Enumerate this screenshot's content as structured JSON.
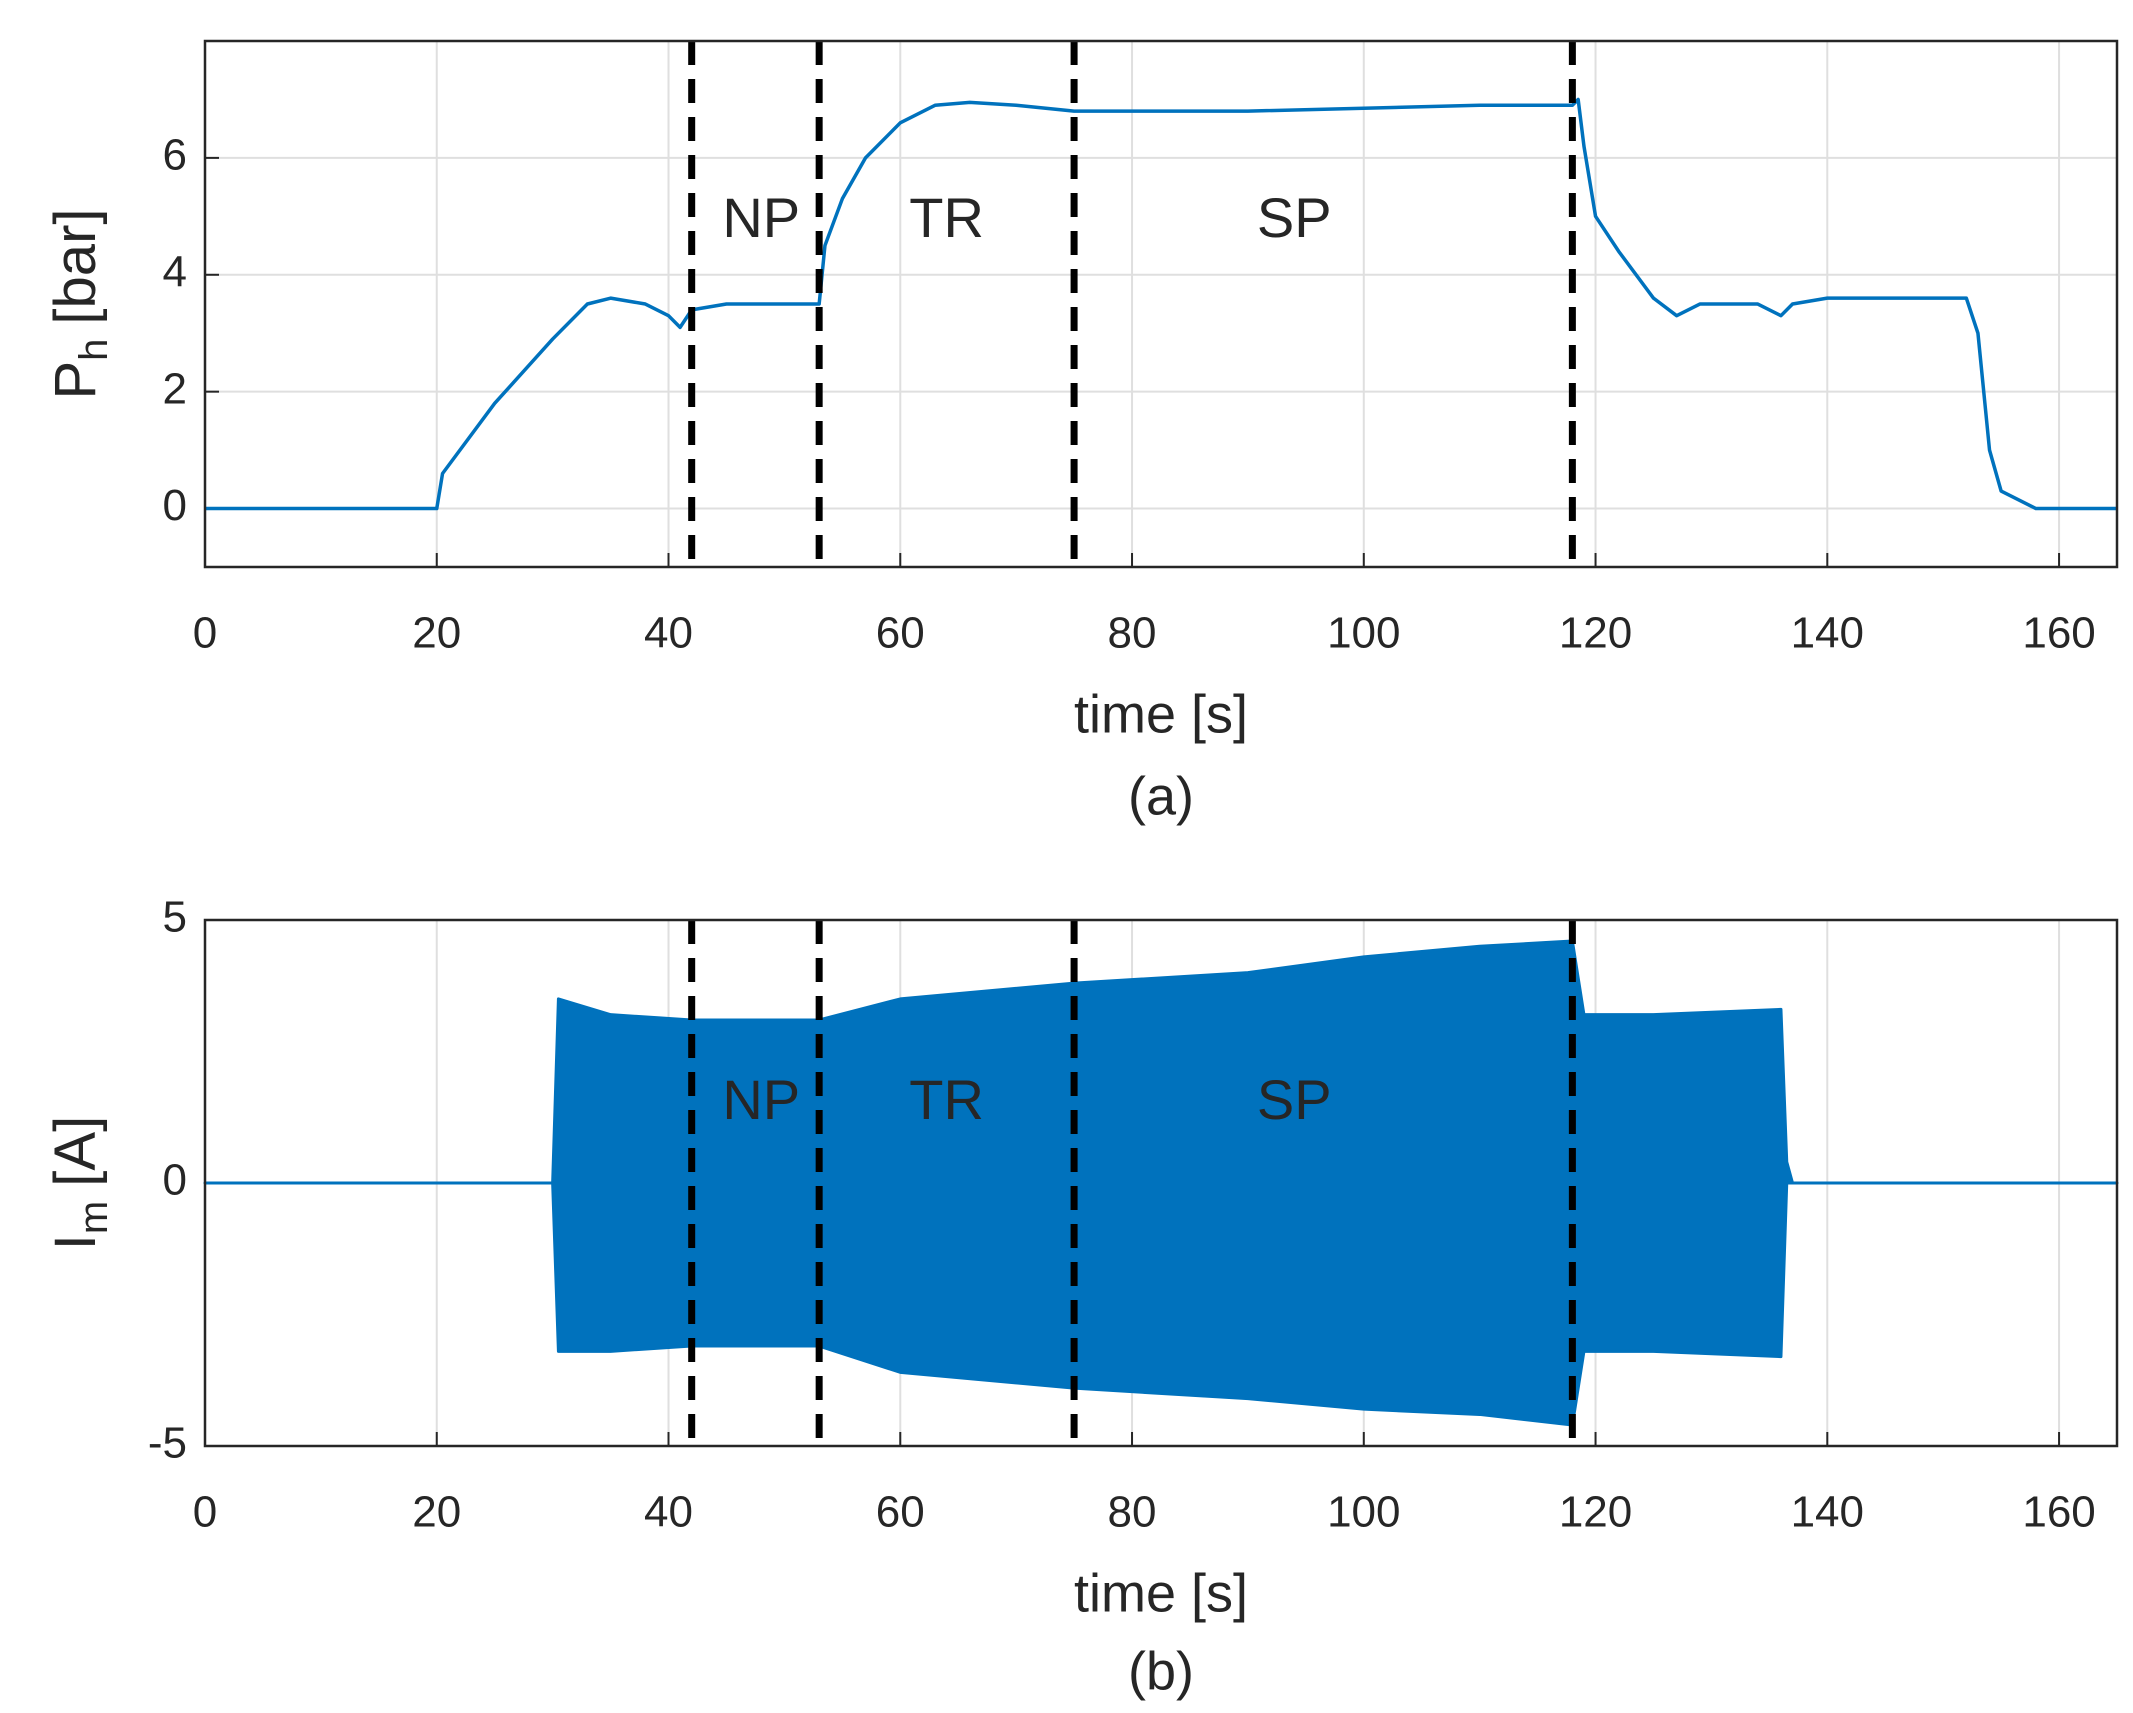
{
  "chart_data": [
    {
      "type": "line",
      "x": [
        0,
        20,
        20.5,
        25,
        30,
        33,
        35,
        38,
        40,
        41,
        42,
        45,
        53,
        53.5,
        55,
        57,
        60,
        63,
        66,
        70,
        75,
        90,
        110,
        118,
        118.5,
        119,
        120,
        122,
        125,
        127,
        129,
        134,
        136,
        137,
        140,
        152,
        153,
        154,
        155,
        158,
        165
      ],
      "series": [
        {
          "color": "#0072bd",
          "values": [
            0,
            0,
            0.6,
            1.8,
            2.9,
            3.5,
            3.6,
            3.5,
            3.3,
            3.1,
            3.4,
            3.5,
            3.5,
            4.5,
            5.3,
            6.0,
            6.6,
            6.9,
            6.95,
            6.9,
            6.8,
            6.8,
            6.9,
            6.9,
            7.0,
            6.2,
            5.0,
            4.4,
            3.6,
            3.3,
            3.5,
            3.5,
            3.3,
            3.5,
            3.6,
            3.6,
            3.0,
            1.0,
            0.3,
            0,
            0
          ]
        }
      ],
      "xlim": [
        0,
        165
      ],
      "xticks": [
        0,
        20,
        40,
        60,
        80,
        100,
        120,
        140,
        160
      ],
      "ylim": [
        -1,
        8
      ],
      "yticks": [
        0,
        2,
        4,
        6
      ],
      "grid": true,
      "xlabel": "time [s]",
      "ylabel": [
        "P",
        "h",
        "[bar]"
      ],
      "caption": "(a)",
      "vlines": [
        42,
        53,
        75,
        118
      ],
      "annotations": [
        {
          "text": "NP",
          "x": 48,
          "y": 4.9
        },
        {
          "text": "TR",
          "x": 64,
          "y": 4.9
        },
        {
          "text": "SP",
          "x": 94,
          "y": 4.9
        }
      ]
    },
    {
      "type": "area",
      "x": [
        0,
        30,
        30.5,
        35,
        42,
        53,
        60,
        75,
        90,
        100,
        110,
        118,
        119,
        125,
        136,
        136.5,
        137,
        165
      ],
      "series": [
        {
          "color": "#0072bd",
          "values": [
            0,
            0,
            3.5,
            3.2,
            3.1,
            3.1,
            3.5,
            3.8,
            4.0,
            4.3,
            4.5,
            4.6,
            3.2,
            3.2,
            3.3,
            0.4,
            0,
            0
          ]
        },
        {
          "color": "#0072bd",
          "values": [
            0,
            0,
            -3.2,
            -3.2,
            -3.1,
            -3.1,
            -3.6,
            -3.9,
            -4.1,
            -4.3,
            -4.4,
            -4.6,
            -3.2,
            -3.2,
            -3.3,
            0,
            0,
            0
          ]
        }
      ],
      "xlim": [
        0,
        165
      ],
      "xticks": [
        0,
        20,
        40,
        60,
        80,
        100,
        120,
        140,
        160
      ],
      "ylim": [
        -5,
        5
      ],
      "yticks": [
        -5,
        0,
        5
      ],
      "grid": true,
      "xlabel": "time [s]",
      "ylabel": [
        "I",
        "m",
        "[A]"
      ],
      "caption": "(b)",
      "vlines": [
        42,
        53,
        75,
        118
      ],
      "annotations": [
        {
          "text": "NP",
          "x": 48,
          "y": 1.5
        },
        {
          "text": "TR",
          "x": 64,
          "y": 1.5
        },
        {
          "text": "SP",
          "x": 94,
          "y": 1.5
        }
      ]
    }
  ]
}
